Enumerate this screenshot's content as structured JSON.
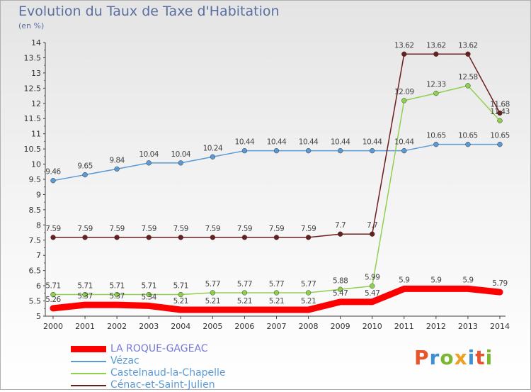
{
  "title": "Evolution du Taux de Taxe d'Habitation",
  "subtitle": "(en %)",
  "logo": {
    "letters": [
      "P",
      "r",
      "o",
      "x",
      "i",
      "t",
      "i"
    ],
    "colors": [
      "#e8542b",
      "#3d8fd6",
      "#7ab82d",
      "#f0a020",
      "#3d8fd6",
      "#e8542b",
      "#7ab82d"
    ]
  },
  "chart_data": {
    "type": "line",
    "x": [
      "2000",
      "2001",
      "2002",
      "2003",
      "2004",
      "2005",
      "2006",
      "2007",
      "2008",
      "2009",
      "2010",
      "2011",
      "2012",
      "2013",
      "2014"
    ],
    "ylim": [
      5,
      14
    ],
    "yticks": [
      "5",
      "5.5",
      "6",
      "6.5",
      "7",
      "7.5",
      "8",
      "8.5",
      "9",
      "9.5",
      "10",
      "10.5",
      "11",
      "11.5",
      "12",
      "12.5",
      "13",
      "13.5",
      "14"
    ],
    "grid": false,
    "legend_position": "bottom-left",
    "series": [
      {
        "name": "LA ROQUE-GAGEAC",
        "color": "#ff0000",
        "values": [
          5.26,
          5.37,
          5.37,
          5.34,
          5.21,
          5.21,
          5.21,
          5.21,
          5.21,
          5.47,
          5.47,
          5.9,
          5.9,
          5.9,
          5.79
        ],
        "labels": [
          "5.26",
          "5.37",
          "5.37",
          "5.34",
          "5.21",
          "5.21",
          "5.21",
          "5.21",
          "5.21",
          "5.47",
          "5.47",
          "5.9",
          "5.9",
          "5.9",
          "5.79"
        ]
      },
      {
        "name": "Vézac",
        "color": "#5b9bd5",
        "values": [
          9.46,
          9.65,
          9.84,
          10.04,
          10.04,
          10.24,
          10.44,
          10.44,
          10.44,
          10.44,
          10.44,
          10.44,
          10.65,
          10.65,
          10.65
        ],
        "labels": [
          "9.46",
          "9.65",
          "9.84",
          "10.04",
          "10.04",
          "10.24",
          "10.44",
          "10.44",
          "10.44",
          "10.44",
          "10.44",
          "10.44",
          "10.65",
          "10.65",
          "10.65"
        ]
      },
      {
        "name": "Castelnaud-la-Chapelle",
        "color": "#8fd14f",
        "values": [
          5.71,
          5.71,
          5.71,
          5.71,
          5.71,
          5.77,
          5.77,
          5.77,
          5.77,
          5.88,
          5.99,
          12.09,
          12.33,
          12.58,
          11.43
        ],
        "labels": [
          "5.71",
          "5.71",
          "5.71",
          "5.71",
          "5.71",
          "5.77",
          "5.77",
          "5.77",
          "5.77",
          "5.88",
          "5.99",
          "12.09",
          "12.33",
          "12.58",
          "11.43"
        ]
      },
      {
        "name": "Cénac-et-Saint-Julien",
        "color": "#6b1e1e",
        "values": [
          7.59,
          7.59,
          7.59,
          7.59,
          7.59,
          7.59,
          7.59,
          7.59,
          7.59,
          7.7,
          7.7,
          13.62,
          13.62,
          13.62,
          11.68
        ],
        "labels": [
          "7.59",
          "7.59",
          "7.59",
          "7.59",
          "7.59",
          "7.59",
          "7.59",
          "7.59",
          "7.59",
          "7.7",
          "7.7",
          "13.62",
          "13.62",
          "13.62",
          "11.68"
        ]
      }
    ]
  }
}
